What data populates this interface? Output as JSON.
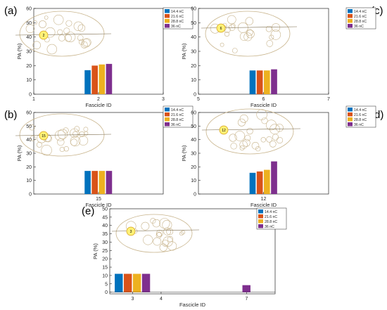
{
  "legend_labels": [
    "14.4 nC",
    "21.6 nC",
    "28.8 nC",
    "36 nC"
  ],
  "series_colors": [
    "#0072BD",
    "#D95319",
    "#EDB120",
    "#7E2F8E"
  ],
  "inset_stroke": "#c8b48c",
  "highlight_fill": "#fff176",
  "chart_data": [
    {
      "panel_label": "(a)",
      "type": "bar",
      "xlabel": "Fascicle ID",
      "ylabel": "PA (%)",
      "xlim": [
        1,
        3
      ],
      "ylim": [
        0,
        60
      ],
      "xticks": [
        1,
        2,
        3
      ],
      "xticklabels": [
        "1",
        "2",
        "3"
      ],
      "yticks": [
        0,
        10,
        20,
        30,
        40,
        50,
        60
      ],
      "inset_label": "2",
      "groups": [
        {
          "x": 2,
          "label": "2",
          "values": [
            16.8,
            20.0,
            20.8,
            21.2
          ]
        }
      ]
    },
    {
      "panel_label": "(c)",
      "type": "bar",
      "xlabel": "Fascicle ID",
      "ylabel": "PA (%)",
      "xlim": [
        5,
        7
      ],
      "ylim": [
        0,
        60
      ],
      "xticks": [
        5,
        6,
        7
      ],
      "xticklabels": [
        "5",
        "6",
        "7"
      ],
      "yticks": [
        0,
        10,
        20,
        30,
        40,
        50,
        60
      ],
      "inset_label": "6",
      "groups": [
        {
          "x": 6,
          "label": "6",
          "values": [
            16.6,
            16.6,
            16.6,
            17.4
          ]
        }
      ]
    },
    {
      "panel_label": "(b)",
      "type": "bar",
      "xlabel": "Fascicle ID",
      "ylabel": "PA (%)",
      "xlim": [
        14,
        16
      ],
      "ylim": [
        0,
        60
      ],
      "xticks": [
        15
      ],
      "xticklabels": [
        "15"
      ],
      "yticks": [
        0,
        10,
        20,
        30,
        40,
        50,
        60
      ],
      "inset_label": "15",
      "groups": [
        {
          "x": 15,
          "label": "15",
          "values": [
            17.0,
            17.0,
            17.0,
            17.0
          ]
        }
      ]
    },
    {
      "panel_label": "(d)",
      "type": "bar",
      "xlabel": "Fascicle ID",
      "ylabel": "PA (%)",
      "xlim": [
        11,
        13
      ],
      "ylim": [
        0,
        60
      ],
      "xticks": [
        12
      ],
      "xticklabels": [
        "12"
      ],
      "yticks": [
        0,
        10,
        20,
        30,
        40,
        50,
        60
      ],
      "inset_label": "12",
      "groups": [
        {
          "x": 12,
          "label": "12",
          "values": [
            15.6,
            16.6,
            17.8,
            24.0
          ]
        }
      ]
    },
    {
      "panel_label": "(e)",
      "type": "bar",
      "xlabel": "Fascicle ID",
      "ylabel": "PA (%)",
      "xlim": [
        2.2,
        8
      ],
      "ylim": [
        -1,
        50
      ],
      "xticks": [
        3,
        4,
        7
      ],
      "xticklabels": [
        "3",
        "4",
        "7"
      ],
      "yticks": [
        0,
        5,
        10,
        15,
        20,
        25,
        30,
        35,
        40,
        45,
        50
      ],
      "inset_label": "3",
      "groups": [
        {
          "x": 3,
          "label": "3",
          "values": [
            11.0,
            11.0,
            11.0,
            11.0
          ]
        },
        {
          "x": 7,
          "label": "7",
          "values": [
            0,
            0,
            0,
            4.2
          ]
        }
      ]
    }
  ]
}
